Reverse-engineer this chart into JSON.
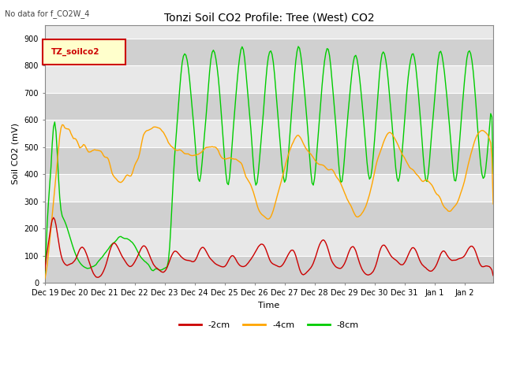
{
  "title": "Tonzi Soil CO2 Profile: Tree (West) CO2",
  "subtitle": "No data for f_CO2W_4",
  "ylabel": "Soil CO2 (mV)",
  "xlabel": "Time",
  "legend_label": "TZ_soilco2",
  "series_labels": [
    "-2cm",
    "-4cm",
    "-8cm"
  ],
  "series_colors": [
    "#cc0000",
    "#ffa500",
    "#00cc00"
  ],
  "ylim": [
    0,
    950
  ],
  "yticks": [
    0,
    100,
    200,
    300,
    400,
    500,
    600,
    700,
    800,
    900
  ],
  "background_color": "#ffffff",
  "plot_bg_light": "#e8e8e8",
  "plot_bg_dark": "#d0d0d0",
  "grid_color": "#ffffff",
  "title_fontsize": 10,
  "axis_fontsize": 8,
  "tick_fontsize": 7,
  "legend_box_color": "#ffffcc",
  "legend_box_edge": "#cc0000",
  "n_days": 15,
  "n_points": 360
}
